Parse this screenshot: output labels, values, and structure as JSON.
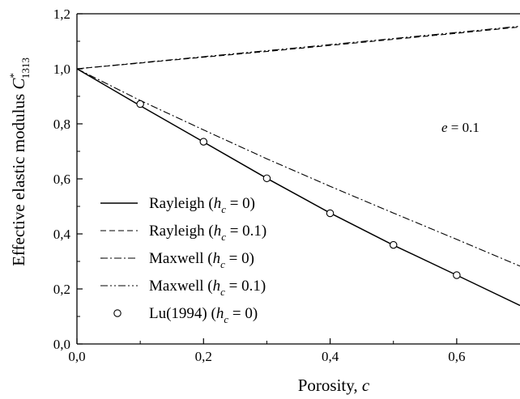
{
  "chart_data": {
    "type": "line",
    "xlabel": {
      "main": "Porosity, ",
      "var": "c"
    },
    "ylabel": {
      "main": "Effective elastic modulus ",
      "var": "C",
      "sup": "*",
      "sub": "1313"
    },
    "xlim": [
      0,
      0.7
    ],
    "ylim": [
      0,
      1.2
    ],
    "x_ticks": [
      "0,0",
      "0,2",
      "0,4",
      "0,6"
    ],
    "x_tick_values": [
      0,
      0.2,
      0.4,
      0.6
    ],
    "y_ticks": [
      "0,0",
      "0,2",
      "0,4",
      "0,6",
      "0,8",
      "1,0",
      "1,2"
    ],
    "y_tick_values": [
      0,
      0.2,
      0.4,
      0.6,
      0.8,
      1.0,
      1.2
    ],
    "annotation": {
      "var": "e",
      "text": " = 0.1"
    },
    "series": [
      {
        "name": "Rayleigh (h_c = 0)",
        "legend": {
          "pre": "Rayleigh (",
          "var": "h",
          "sub": "c",
          "post": " = 0)"
        },
        "style": "solid",
        "x": [
          0,
          0.1,
          0.2,
          0.3,
          0.4,
          0.5,
          0.6,
          0.7
        ],
        "y": [
          1.0,
          0.866,
          0.734,
          0.602,
          0.476,
          0.359,
          0.25,
          0.14
        ]
      },
      {
        "name": "Rayleigh (h_c = 0.1)",
        "legend": {
          "pre": "Rayleigh (",
          "var": "h",
          "sub": "c",
          "post": " = 0.1)"
        },
        "style": "dashed",
        "x": [
          0,
          0.1,
          0.2,
          0.3,
          0.4,
          0.5,
          0.6,
          0.7
        ],
        "y": [
          1.0,
          1.021,
          1.042,
          1.063,
          1.085,
          1.107,
          1.129,
          1.152
        ]
      },
      {
        "name": "Maxwell (h_c = 0)",
        "legend": {
          "pre": "Maxwell (",
          "var": "h",
          "sub": "c",
          "post": " = 0)"
        },
        "style": "dashdot",
        "x": [
          0,
          0.1,
          0.2,
          0.3,
          0.4,
          0.5,
          0.6,
          0.7
        ],
        "y": [
          1.0,
          0.885,
          0.778,
          0.673,
          0.573,
          0.476,
          0.38,
          0.283
        ]
      },
      {
        "name": "Maxwell (h_c = 0.1)",
        "legend": {
          "pre": "Maxwell (",
          "var": "h",
          "sub": "c",
          "post": " = 0.1)"
        },
        "style": "dashdotdot",
        "x": [
          0,
          0.1,
          0.2,
          0.3,
          0.4,
          0.5,
          0.6,
          0.7
        ],
        "y": [
          1.0,
          1.022,
          1.044,
          1.066,
          1.088,
          1.11,
          1.132,
          1.155
        ]
      },
      {
        "name": "Lu(1994) (h_c = 0)",
        "legend": {
          "pre": "Lu(1994) (",
          "var": "h",
          "sub": "c",
          "post": " = 0)"
        },
        "style": "markers",
        "x": [
          0.1,
          0.2,
          0.3,
          0.4,
          0.5,
          0.6
        ],
        "y": [
          0.872,
          0.735,
          0.602,
          0.475,
          0.36,
          0.25
        ]
      }
    ]
  }
}
